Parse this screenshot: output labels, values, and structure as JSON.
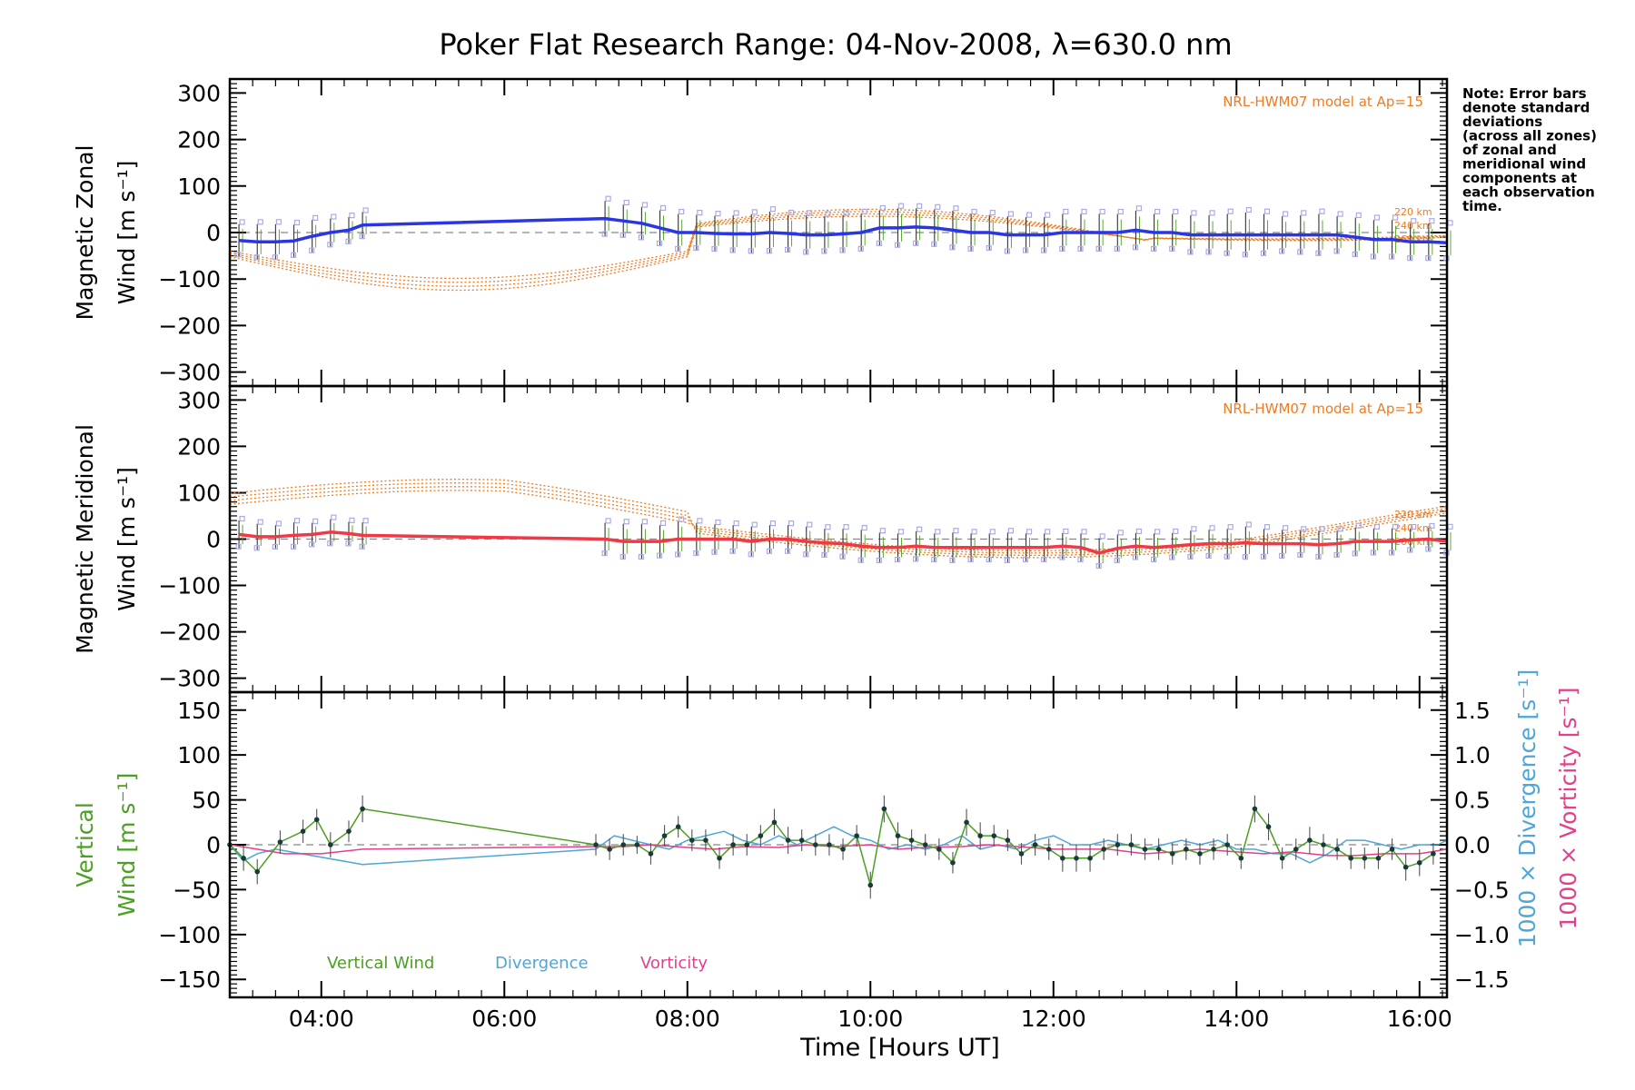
{
  "title": "Poker Flat Research Range: 04-Nov-2008, λ=630.0 nm",
  "note": [
    "Note: Error bars",
    "denote standard",
    "deviations",
    "(across all zones)",
    "of zonal and",
    "meridional wind",
    "components at",
    "each observation",
    "time."
  ],
  "xaxis": {
    "label": "Time [Hours UT]",
    "range": [
      3.0,
      16.3
    ],
    "ticks": [
      {
        "v": 4,
        "label": "04:00"
      },
      {
        "v": 6,
        "label": "06:00"
      },
      {
        "v": 8,
        "label": "08:00"
      },
      {
        "v": 10,
        "label": "10:00"
      },
      {
        "v": 12,
        "label": "12:00"
      },
      {
        "v": 14,
        "label": "14:00"
      },
      {
        "v": 16,
        "label": "16:00"
      }
    ]
  },
  "colors": {
    "zonal": "#2a36e6",
    "meridional": "#f23845",
    "vertical": "#4aa020",
    "divergence": "#4fa6d8",
    "vorticity": "#e63f8a",
    "model": "#f07a20",
    "scatter": "#a9abe8"
  },
  "model_label": "NRL-HWM07 model at Ap=15",
  "model_altitudes": [
    "220 km",
    "240 km",
    "260 km"
  ],
  "chart_data": [
    {
      "type": "line",
      "panel": "zonal",
      "ylabel_lines": [
        "Magnetic Zonal",
        "Wind [m s⁻¹]"
      ],
      "ylim": [
        -330,
        330
      ],
      "yticks": [
        -300,
        -200,
        -100,
        0,
        100,
        200,
        300
      ],
      "series": [
        {
          "x": [
            3.1,
            3.3,
            3.5,
            3.7,
            3.9,
            4.1,
            4.3,
            4.45,
            7.1,
            7.3,
            7.5,
            7.7,
            7.9,
            8.1,
            8.3,
            8.5,
            8.7,
            8.9,
            9.1,
            9.3,
            9.5,
            9.7,
            9.9,
            10.1,
            10.3,
            10.5,
            10.7,
            10.9,
            11.1,
            11.3,
            11.5,
            11.7,
            11.9,
            12.1,
            12.3,
            12.5,
            12.7,
            12.9,
            13.1,
            13.3,
            13.5,
            13.7,
            13.9,
            14.1,
            14.3,
            14.5,
            14.7,
            14.9,
            15.1,
            15.3,
            15.5,
            15.7,
            15.9,
            16.1,
            16.3
          ],
          "y": [
            -17,
            -20,
            -20,
            -18,
            -8,
            0,
            5,
            16,
            30,
            25,
            20,
            10,
            0,
            0,
            -2,
            -3,
            -3,
            0,
            -2,
            -5,
            -5,
            -3,
            0,
            10,
            10,
            12,
            10,
            5,
            0,
            0,
            -5,
            -5,
            -5,
            0,
            0,
            0,
            0,
            5,
            0,
            0,
            -5,
            -5,
            -5,
            -5,
            -5,
            -5,
            -5,
            -5,
            -5,
            -10,
            -15,
            -15,
            -20,
            -20,
            -22
          ],
          "err": [
            35,
            38,
            38,
            35,
            35,
            30,
            28,
            28,
            38,
            35,
            35,
            38,
            40,
            38,
            38,
            40,
            42,
            45,
            40,
            42,
            40,
            40,
            40,
            38,
            42,
            40,
            40,
            42,
            40,
            38,
            40,
            38,
            38,
            40,
            40,
            40,
            40,
            42,
            40,
            40,
            42,
            42,
            45,
            48,
            45,
            40,
            42,
            45,
            40,
            42,
            42,
            42,
            40,
            40,
            38
          ]
        }
      ]
    },
    {
      "type": "line",
      "panel": "meridional",
      "ylabel_lines": [
        "Magnetic Meridional",
        "Wind [m s⁻¹]"
      ],
      "ylim": [
        -330,
        330
      ],
      "yticks": [
        -300,
        -200,
        -100,
        0,
        100,
        200,
        300
      ],
      "series": [
        {
          "x": [
            3.1,
            3.3,
            3.5,
            3.7,
            3.9,
            4.1,
            4.3,
            4.45,
            7.1,
            7.3,
            7.5,
            7.7,
            7.9,
            8.1,
            8.3,
            8.5,
            8.7,
            8.9,
            9.1,
            9.3,
            9.5,
            9.7,
            9.9,
            10.1,
            10.3,
            10.5,
            10.7,
            10.9,
            11.1,
            11.3,
            11.5,
            11.7,
            11.9,
            12.1,
            12.3,
            12.5,
            12.7,
            12.9,
            13.1,
            13.3,
            13.5,
            13.7,
            13.9,
            14.1,
            14.3,
            14.5,
            14.7,
            14.9,
            15.1,
            15.3,
            15.5,
            15.7,
            15.9,
            16.1,
            16.3
          ],
          "y": [
            10,
            5,
            5,
            8,
            10,
            15,
            12,
            8,
            0,
            -5,
            -5,
            -5,
            0,
            0,
            0,
            0,
            -5,
            0,
            0,
            -5,
            -8,
            -10,
            -15,
            -18,
            -18,
            -15,
            -18,
            -18,
            -18,
            -18,
            -18,
            -18,
            -18,
            -15,
            -18,
            -30,
            -20,
            -15,
            -18,
            -15,
            -12,
            -10,
            -10,
            -8,
            -10,
            -10,
            -10,
            -12,
            -10,
            -5,
            -5,
            -5,
            -2,
            0,
            -5
          ],
          "err": [
            30,
            28,
            25,
            28,
            25,
            28,
            25,
            28,
            35,
            38,
            38,
            35,
            38,
            35,
            32,
            30,
            32,
            30,
            30,
            32,
            30,
            32,
            35,
            32,
            30,
            32,
            30,
            32,
            30,
            30,
            32,
            30,
            30,
            28,
            30,
            32,
            30,
            28,
            30,
            28,
            30,
            30,
            32,
            35,
            32,
            30,
            28,
            30,
            28,
            30,
            28,
            28,
            25,
            25,
            28
          ]
        }
      ]
    },
    {
      "type": "line",
      "panel": "vertical",
      "ylabel_lines": [
        "Vertical",
        "Wind [m s⁻¹]"
      ],
      "ylim": [
        -170,
        170
      ],
      "yticks": [
        -150,
        -100,
        -50,
        0,
        50,
        100,
        150
      ],
      "y2label_lines": [
        "1000 × Divergence [s⁻¹]",
        "1000 × Vorticity [s⁻¹]"
      ],
      "y2lim": [
        -1.7,
        1.7
      ],
      "y2ticks": [
        -1.5,
        -1.0,
        -0.5,
        0.0,
        0.5,
        1.0,
        1.5
      ],
      "legend": [
        "Vertical Wind",
        "Divergence",
        "Vorticity"
      ],
      "series": [
        {
          "name": "Vertical Wind",
          "axis": "left",
          "x": [
            3.0,
            3.15,
            3.3,
            3.55,
            3.8,
            3.95,
            4.1,
            4.3,
            4.45,
            7.0,
            7.15,
            7.3,
            7.45,
            7.6,
            7.75,
            7.9,
            8.05,
            8.2,
            8.35,
            8.5,
            8.65,
            8.8,
            8.95,
            9.1,
            9.25,
            9.4,
            9.55,
            9.7,
            9.85,
            10.0,
            10.15,
            10.3,
            10.45,
            10.6,
            10.75,
            10.9,
            11.05,
            11.2,
            11.35,
            11.5,
            11.65,
            11.8,
            11.95,
            12.1,
            12.25,
            12.4,
            12.55,
            12.7,
            12.85,
            13.0,
            13.15,
            13.3,
            13.45,
            13.6,
            13.75,
            13.9,
            14.05,
            14.2,
            14.35,
            14.5,
            14.65,
            14.8,
            14.95,
            15.1,
            15.25,
            15.4,
            15.55,
            15.7,
            15.85,
            16.0,
            16.15
          ],
          "y": [
            0,
            -15,
            -30,
            3,
            15,
            28,
            0,
            15,
            40,
            0,
            -5,
            0,
            0,
            -10,
            10,
            20,
            5,
            5,
            -15,
            0,
            0,
            10,
            25,
            5,
            5,
            0,
            0,
            -5,
            10,
            -45,
            40,
            10,
            5,
            0,
            -5,
            -20,
            25,
            10,
            10,
            5,
            -10,
            0,
            -5,
            -15,
            -15,
            -15,
            -5,
            0,
            0,
            -5,
            -5,
            -10,
            -5,
            -10,
            -5,
            0,
            -15,
            40,
            20,
            -15,
            -5,
            5,
            0,
            -5,
            -15,
            -15,
            -15,
            -5,
            -25,
            -20,
            -10
          ],
          "err": [
            18,
            14,
            14,
            13,
            13,
            12,
            14,
            12,
            15,
            12,
            12,
            12,
            10,
            12,
            12,
            12,
            12,
            12,
            12,
            12,
            12,
            12,
            15,
            15,
            12,
            12,
            12,
            12,
            12,
            15,
            15,
            15,
            12,
            12,
            12,
            12,
            15,
            15,
            12,
            12,
            12,
            12,
            12,
            15,
            15,
            15,
            12,
            12,
            12,
            12,
            12,
            12,
            12,
            12,
            12,
            12,
            12,
            15,
            15,
            12,
            12,
            15,
            12,
            12,
            12,
            12,
            12,
            12,
            15,
            15,
            12
          ],
          "color_key": "vertical"
        },
        {
          "name": "Divergence",
          "axis": "right",
          "x": [
            3.0,
            3.15,
            3.3,
            3.5,
            4.45,
            7.0,
            7.2,
            7.4,
            7.6,
            7.8,
            8.0,
            8.2,
            8.4,
            8.6,
            8.8,
            9.0,
            9.2,
            9.4,
            9.6,
            9.8,
            10.0,
            10.2,
            10.4,
            10.6,
            10.8,
            11.0,
            11.2,
            11.4,
            11.6,
            11.8,
            12.0,
            12.2,
            12.4,
            12.6,
            12.8,
            13.0,
            13.2,
            13.4,
            13.6,
            13.8,
            14.0,
            14.2,
            14.4,
            14.6,
            14.8,
            15.0,
            15.2,
            15.4,
            15.6,
            15.8,
            16.0,
            16.2,
            16.3
          ],
          "y": [
            0,
            -0.18,
            -0.1,
            -0.05,
            -0.22,
            -0.05,
            0.1,
            0.05,
            0.0,
            -0.05,
            0.05,
            0.1,
            0.15,
            0.05,
            0.0,
            0.1,
            0.0,
            0.1,
            0.2,
            0.1,
            0.05,
            -0.05,
            0.0,
            -0.05,
            0.0,
            0.1,
            -0.05,
            0.0,
            -0.05,
            0.05,
            0.1,
            0.0,
            0.0,
            0.05,
            0.0,
            -0.05,
            0.0,
            0.05,
            0.0,
            0.05,
            -0.05,
            -0.05,
            -0.1,
            -0.1,
            -0.2,
            -0.1,
            0.05,
            0.05,
            0.0,
            -0.05,
            0.0,
            0.0,
            0.05
          ],
          "color_key": "divergence"
        },
        {
          "name": "Vorticity",
          "axis": "right",
          "x": [
            3.0,
            3.3,
            3.6,
            4.0,
            4.45,
            7.0,
            7.3,
            7.6,
            8.0,
            8.3,
            8.6,
            9.0,
            9.3,
            9.6,
            10.0,
            10.3,
            10.6,
            11.0,
            11.3,
            11.6,
            12.0,
            12.3,
            12.6,
            13.0,
            13.3,
            13.6,
            14.0,
            14.3,
            14.6,
            15.0,
            15.3,
            15.6,
            16.0,
            16.3
          ],
          "y": [
            0,
            -0.05,
            -0.1,
            -0.1,
            -0.05,
            -0.02,
            -0.02,
            0.0,
            -0.03,
            -0.05,
            -0.02,
            -0.03,
            0.0,
            -0.02,
            0.0,
            -0.05,
            -0.03,
            -0.02,
            0.0,
            -0.02,
            -0.05,
            -0.05,
            -0.05,
            -0.1,
            -0.08,
            -0.05,
            -0.08,
            -0.1,
            -0.08,
            -0.12,
            -0.12,
            -0.1,
            -0.1,
            -0.05
          ],
          "color_key": "vorticity"
        }
      ]
    }
  ]
}
